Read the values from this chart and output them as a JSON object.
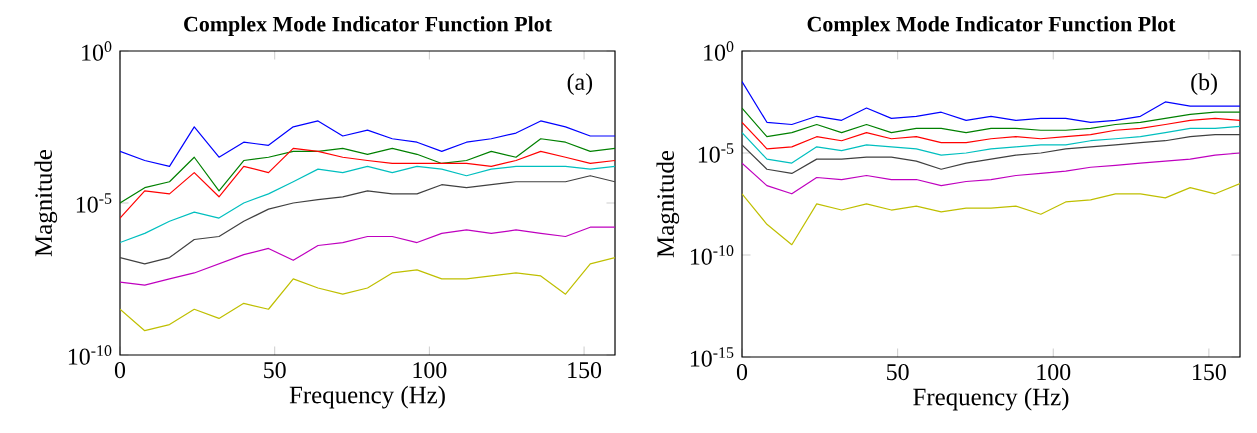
{
  "chart_data": [
    {
      "type": "line",
      "title": "Complex Mode Indicator Function Plot",
      "xlabel": "Frequency (Hz)",
      "ylabel": "Magnitude",
      "annotations": [
        "(a)"
      ],
      "log": true,
      "xlim": [
        0,
        160
      ],
      "xticks": [
        0,
        50,
        100,
        150
      ],
      "ylim": [
        1e-10,
        1
      ],
      "yticks": [
        {
          "value": 1e-10,
          "label": "10$^{-10}$"
        },
        {
          "value": 1e-05,
          "label": "10$^{-5}$"
        },
        {
          "value": 1,
          "label": "10$^{0}$"
        }
      ],
      "x": [
        0,
        8,
        16,
        24,
        32,
        40,
        48,
        56,
        64,
        72,
        80,
        88,
        96,
        104,
        112,
        120,
        128,
        136,
        144,
        152,
        160
      ],
      "series": [
        {
          "color": "#0000ff",
          "values": [
            0.0005,
            0.00025,
            0.00016,
            0.0032,
            0.00032,
            0.001,
            0.00079,
            0.0032,
            0.005,
            0.0016,
            0.0025,
            0.0013,
            0.001,
            0.0005,
            0.001,
            0.0013,
            0.002,
            0.005,
            0.0032,
            0.0016,
            0.0016
          ]
        },
        {
          "color": "#008000",
          "values": [
            1e-05,
            3.2e-05,
            5e-05,
            0.00032,
            2.5e-05,
            0.00025,
            0.00032,
            0.0005,
            0.0005,
            0.00063,
            0.0004,
            0.00063,
            0.0004,
            0.0002,
            0.00025,
            0.0005,
            0.00032,
            0.0013,
            0.001,
            0.0005,
            0.00063
          ]
        },
        {
          "color": "#ff0000",
          "values": [
            3.2e-06,
            2.5e-05,
            2e-05,
            0.0001,
            1.6e-05,
            0.00016,
            0.0001,
            0.00063,
            0.0005,
            0.00032,
            0.00025,
            0.0002,
            0.0002,
            0.0002,
            0.0002,
            0.00016,
            0.00025,
            0.0005,
            0.00032,
            0.0002,
            0.00025
          ]
        },
        {
          "color": "#00bfbf",
          "values": [
            5e-07,
            1e-06,
            2.5e-06,
            5e-06,
            3.2e-06,
            1e-05,
            2e-05,
            5e-05,
            0.00013,
            0.0001,
            0.00016,
            0.0001,
            0.00016,
            0.00013,
            7.9e-05,
            0.00013,
            0.00016,
            0.00016,
            0.00016,
            0.00013,
            0.00016
          ]
        },
        {
          "color": "#404040",
          "values": [
            1.6e-07,
            1e-07,
            1.6e-07,
            6.3e-07,
            7.9e-07,
            2.5e-06,
            6.3e-06,
            1e-05,
            1.3e-05,
            1.6e-05,
            2.5e-05,
            2e-05,
            2e-05,
            4e-05,
            3.2e-05,
            4e-05,
            5e-05,
            5e-05,
            5e-05,
            7.9e-05,
            5e-05
          ]
        },
        {
          "color": "#bf00bf",
          "values": [
            2.5e-08,
            2e-08,
            3.2e-08,
            5e-08,
            1e-07,
            2e-07,
            3.2e-07,
            1.3e-07,
            4e-07,
            5e-07,
            7.9e-07,
            7.9e-07,
            5e-07,
            1e-06,
            1.3e-06,
            1e-06,
            1.3e-06,
            1e-06,
            7.9e-07,
            1.6e-06,
            1.6e-06
          ]
        },
        {
          "color": "#bfbf00",
          "values": [
            3.2e-09,
            6.3e-10,
            1e-09,
            3.2e-09,
            1.6e-09,
            5e-09,
            3.2e-09,
            3.2e-08,
            1.6e-08,
            1e-08,
            1.6e-08,
            5e-08,
            6.3e-08,
            3.2e-08,
            3.2e-08,
            4e-08,
            5e-08,
            4e-08,
            1e-08,
            1e-07,
            1.6e-07
          ]
        }
      ]
    },
    {
      "type": "line",
      "title": "Complex Mode Indicator Function Plot",
      "xlabel": "Frequency (Hz)",
      "ylabel": "Magnitude",
      "annotations": [
        "(b)"
      ],
      "log": true,
      "xlim": [
        0,
        160
      ],
      "xticks": [
        0,
        50,
        100,
        150
      ],
      "ylim": [
        1e-15,
        1
      ],
      "yticks": [
        {
          "value": 1e-15,
          "label": "10$^{-15}$"
        },
        {
          "value": 1e-10,
          "label": "10$^{-10}$"
        },
        {
          "value": 1e-05,
          "label": "10$^{-5}$"
        },
        {
          "value": 1,
          "label": "10$^{0}$"
        }
      ],
      "x": [
        0,
        8,
        16,
        24,
        32,
        40,
        48,
        56,
        64,
        72,
        80,
        88,
        96,
        104,
        112,
        120,
        128,
        136,
        144,
        152,
        160
      ],
      "series": [
        {
          "color": "#0000ff",
          "values": [
            0.032,
            0.00032,
            0.00025,
            0.00063,
            0.0004,
            0.0016,
            0.0005,
            0.00063,
            0.001,
            0.0004,
            0.00063,
            0.0004,
            0.0005,
            0.0005,
            0.00032,
            0.0004,
            0.00063,
            0.0032,
            0.002,
            0.002,
            0.002
          ]
        },
        {
          "color": "#008000",
          "values": [
            0.0016,
            6.3e-05,
            0.0001,
            0.00025,
            0.0001,
            0.00025,
            0.0001,
            0.00016,
            0.00016,
            0.0001,
            0.00016,
            0.00016,
            0.00013,
            0.00013,
            0.00016,
            0.00025,
            0.00032,
            0.0005,
            0.00079,
            0.001,
            0.001
          ]
        },
        {
          "color": "#ff0000",
          "values": [
            0.00032,
            1.6e-05,
            2e-05,
            6.3e-05,
            4e-05,
            0.0001,
            5e-05,
            6.3e-05,
            3.2e-05,
            3.2e-05,
            5e-05,
            6.3e-05,
            5e-05,
            6.3e-05,
            7.9e-05,
            0.00013,
            0.00016,
            0.00025,
            0.0004,
            0.0005,
            0.0004
          ]
        },
        {
          "color": "#00bfbf",
          "values": [
            0.0001,
            5e-06,
            3.2e-06,
            2e-05,
            1.3e-05,
            2.5e-05,
            2e-05,
            1.6e-05,
            7.9e-06,
            1e-05,
            1.6e-05,
            2e-05,
            2.5e-05,
            2.5e-05,
            4e-05,
            5e-05,
            6.3e-05,
            0.0001,
            0.00016,
            0.00016,
            0.0002
          ]
        },
        {
          "color": "#404040",
          "values": [
            2.5e-05,
            1.6e-06,
            1e-06,
            5e-06,
            5e-06,
            6.3e-06,
            6.3e-06,
            4e-06,
            1.6e-06,
            3.2e-06,
            5e-06,
            7.9e-06,
            1e-05,
            1.6e-05,
            2e-05,
            2.5e-05,
            3.2e-05,
            4e-05,
            6.3e-05,
            7.9e-05,
            7.9e-05
          ]
        },
        {
          "color": "#bf00bf",
          "values": [
            3.2e-06,
            2.5e-07,
            1e-07,
            6.3e-07,
            5e-07,
            7.9e-07,
            5e-07,
            5e-07,
            2.5e-07,
            4e-07,
            5e-07,
            7.9e-07,
            1e-06,
            1.3e-06,
            2e-06,
            2.5e-06,
            3.2e-06,
            4e-06,
            5e-06,
            7.9e-06,
            1e-05
          ]
        },
        {
          "color": "#bfbf00",
          "values": [
            1e-07,
            3.2e-09,
            3.2e-10,
            3.2e-08,
            1.6e-08,
            3.2e-08,
            1.6e-08,
            2.5e-08,
            1.3e-08,
            2e-08,
            2e-08,
            2.5e-08,
            1e-08,
            4e-08,
            5e-08,
            1e-07,
            1e-07,
            6.3e-08,
            2e-07,
            1e-07,
            3.2e-07
          ]
        }
      ]
    }
  ]
}
